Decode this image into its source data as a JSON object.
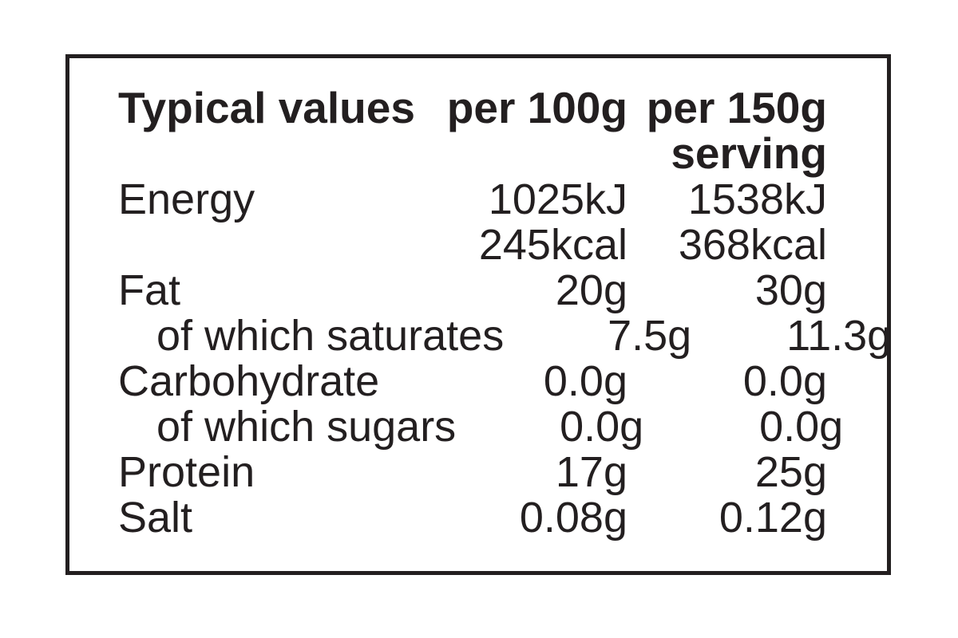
{
  "nutrition_label": {
    "colors": {
      "text": "#231f20",
      "border": "#231f20",
      "background": "#ffffff"
    },
    "header": {
      "typical_values": "Typical values",
      "per_100g": "per 100g",
      "per_150g_serving": "per 150g\nserving"
    },
    "rows": [
      {
        "label": "Energy",
        "indent": false,
        "per100": "1025kJ",
        "per150": "1538kJ"
      },
      {
        "label": "",
        "indent": false,
        "per100": "245kcal",
        "per150": "368kcal"
      },
      {
        "label": "Fat",
        "indent": false,
        "per100": "20g",
        "per150": "30g"
      },
      {
        "label": "of which saturates",
        "indent": true,
        "per100": "7.5g",
        "per150": "11.3g"
      },
      {
        "label": "Carbohydrate",
        "indent": false,
        "per100": "0.0g",
        "per150": "0.0g"
      },
      {
        "label": "of which sugars",
        "indent": true,
        "per100": "0.0g",
        "per150": "0.0g"
      },
      {
        "label": "Protein",
        "indent": false,
        "per100": "17g",
        "per150": "25g"
      },
      {
        "label": "Salt",
        "indent": false,
        "per100": "0.08g",
        "per150": "0.12g"
      }
    ]
  }
}
